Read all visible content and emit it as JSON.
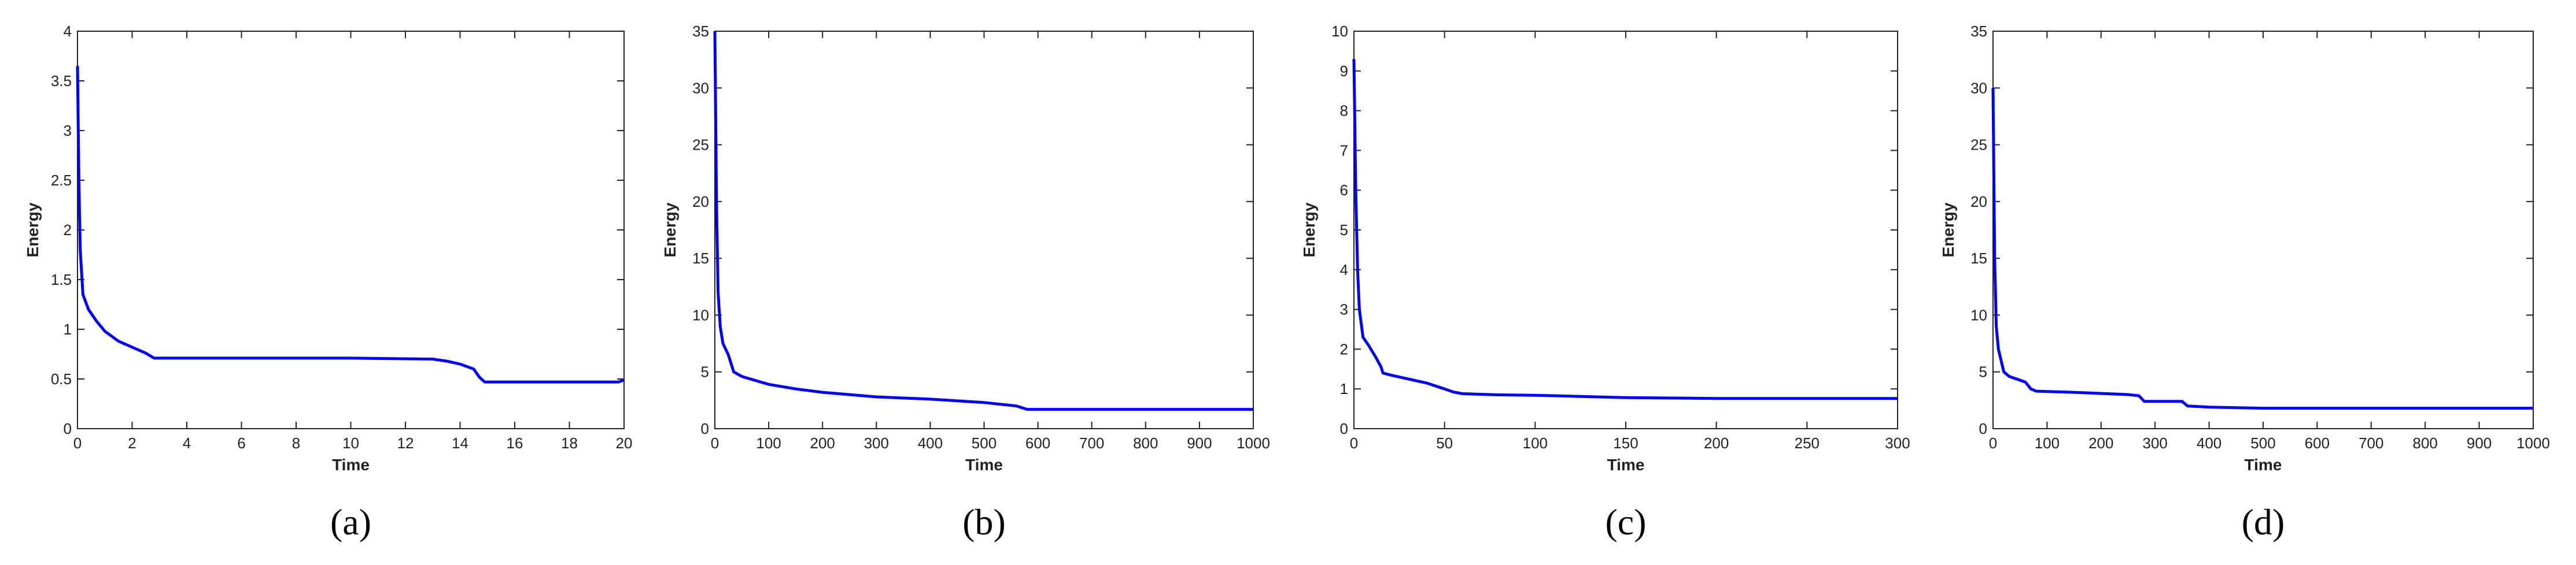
{
  "chart_data": [
    {
      "type": "line",
      "caption": "(a)",
      "x_label": "Time",
      "y_label": "Energy",
      "color": "#0000ff",
      "x": [
        0,
        0.05,
        0.1,
        0.2,
        0.4,
        0.7,
        1,
        1.5,
        2,
        2.5,
        2.8,
        3,
        6,
        10,
        13,
        13.5,
        14,
        14.5,
        14.7,
        14.9,
        16,
        19.8,
        20
      ],
      "values": [
        3.65,
        2.5,
        1.8,
        1.35,
        1.2,
        1.08,
        0.98,
        0.88,
        0.82,
        0.76,
        0.71,
        0.71,
        0.71,
        0.71,
        0.7,
        0.68,
        0.65,
        0.6,
        0.52,
        0.47,
        0.47,
        0.47,
        0.49
      ],
      "xlim": [
        0,
        20
      ],
      "ylim": [
        0,
        4
      ],
      "xticks": [
        0,
        2,
        4,
        6,
        8,
        10,
        12,
        14,
        16,
        18,
        20
      ],
      "yticks": [
        0,
        0.5,
        1,
        1.5,
        2,
        2.5,
        3,
        3.5,
        4
      ]
    },
    {
      "type": "line",
      "caption": "(b)",
      "x_label": "Time",
      "y_label": "Energy",
      "color": "#0000ff",
      "x": [
        0,
        3,
        6,
        10,
        15,
        25,
        35,
        50,
        100,
        150,
        200,
        300,
        400,
        500,
        560,
        580,
        700,
        1000
      ],
      "values": [
        35,
        20,
        12,
        9,
        7.5,
        6.5,
        5,
        4.6,
        3.9,
        3.5,
        3.2,
        2.8,
        2.6,
        2.3,
        2.0,
        1.7,
        1.7,
        1.7
      ],
      "xlim": [
        0,
        1000
      ],
      "ylim": [
        0,
        35
      ],
      "xticks": [
        0,
        100,
        200,
        300,
        400,
        500,
        600,
        700,
        800,
        900,
        1000
      ],
      "yticks": [
        0,
        5,
        10,
        15,
        20,
        25,
        30,
        35
      ]
    },
    {
      "type": "line",
      "caption": "(c)",
      "x_label": "Time",
      "y_label": "Energy",
      "color": "#0000ff",
      "x": [
        0,
        1,
        2,
        3,
        5,
        8,
        12,
        15,
        16,
        20,
        30,
        40,
        50,
        55,
        60,
        80,
        100,
        150,
        200,
        300
      ],
      "values": [
        9.3,
        6,
        4,
        3,
        2.3,
        2.1,
        1.8,
        1.55,
        1.4,
        1.35,
        1.25,
        1.15,
        1.0,
        0.92,
        0.88,
        0.85,
        0.84,
        0.78,
        0.76,
        0.76
      ],
      "xlim": [
        0,
        300
      ],
      "ylim": [
        0,
        10
      ],
      "xticks": [
        0,
        50,
        100,
        150,
        200,
        250,
        300
      ],
      "yticks": [
        0,
        1,
        2,
        3,
        4,
        5,
        6,
        7,
        8,
        9,
        10
      ]
    },
    {
      "type": "line",
      "caption": "(d)",
      "x_label": "Time",
      "y_label": "Energy",
      "color": "#0000ff",
      "x": [
        0,
        3,
        6,
        10,
        20,
        30,
        60,
        70,
        80,
        150,
        250,
        270,
        280,
        350,
        360,
        400,
        500,
        1000
      ],
      "values": [
        30,
        15,
        9,
        7,
        5,
        4.6,
        4.1,
        3.5,
        3.3,
        3.2,
        3.0,
        2.9,
        2.4,
        2.4,
        2.0,
        1.9,
        1.8,
        1.8
      ],
      "xlim": [
        0,
        1000
      ],
      "ylim": [
        0,
        35
      ],
      "xticks": [
        0,
        100,
        200,
        300,
        400,
        500,
        600,
        700,
        800,
        900,
        1000
      ],
      "yticks": [
        0,
        5,
        10,
        15,
        20,
        25,
        30,
        35
      ]
    }
  ]
}
